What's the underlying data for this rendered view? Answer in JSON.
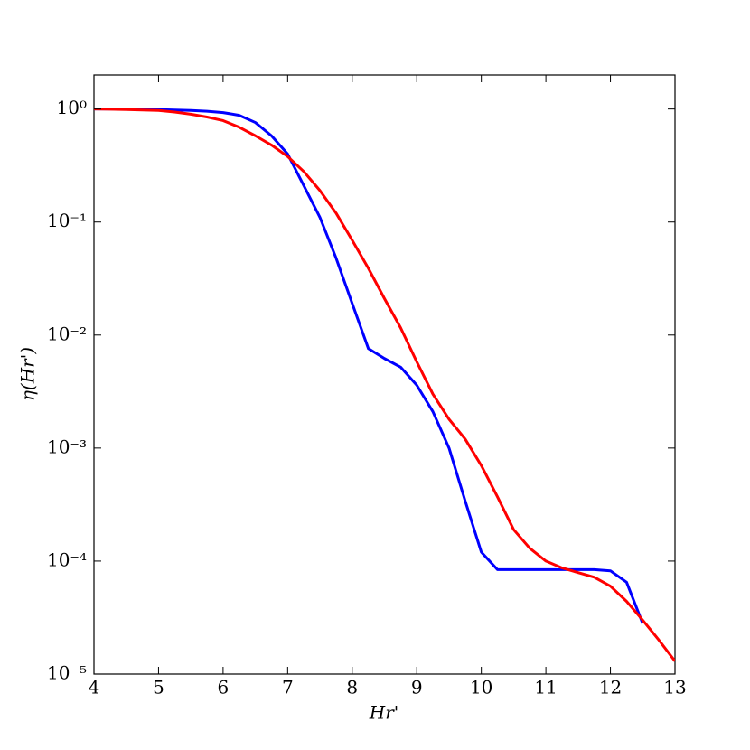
{
  "chart_data": {
    "type": "line",
    "xlabel": "Hr'",
    "ylabel": "η(Hr')",
    "x": [
      4,
      4.25,
      4.5,
      4.75,
      5,
      5.25,
      5.5,
      5.75,
      6,
      6.25,
      6.5,
      6.75,
      7,
      7.25,
      7.5,
      7.75,
      8,
      8.25,
      8.5,
      8.75,
      9,
      9.25,
      9.5,
      9.75,
      10,
      10.25,
      10.5,
      10.75,
      11,
      11.25,
      11.5,
      11.75,
      12,
      12.25,
      12.5,
      12.75,
      13
    ],
    "series": [
      {
        "color": "#0000ff",
        "values": [
          1.0,
          1.0,
          1.0,
          0.995,
          0.99,
          0.98,
          0.97,
          0.955,
          0.93,
          0.88,
          0.76,
          0.58,
          0.4,
          0.21,
          0.11,
          0.048,
          0.019,
          0.0076,
          0.0062,
          0.0052,
          0.0036,
          0.0021,
          0.001,
          0.00034,
          0.00012,
          8.4e-05,
          8.4e-05,
          8.4e-05,
          8.4e-05,
          8.4e-05,
          8.4e-05,
          8.4e-05,
          8.2e-05,
          6.5e-05,
          2.8e-05,
          null,
          null
        ]
      },
      {
        "color": "#ff0000",
        "values": [
          1.0,
          0.995,
          0.99,
          0.98,
          0.97,
          0.94,
          0.9,
          0.85,
          0.79,
          0.69,
          0.58,
          0.48,
          0.38,
          0.28,
          0.19,
          0.12,
          0.069,
          0.039,
          0.021,
          0.0116,
          0.0058,
          0.003,
          0.0018,
          0.0012,
          0.0007,
          0.00037,
          0.00019,
          0.00013,
          0.0001,
          8.7e-05,
          7.9e-05,
          7.2e-05,
          6e-05,
          4.4e-05,
          3e-05,
          2e-05,
          1.3e-05
        ]
      }
    ],
    "xlim": [
      4,
      13
    ],
    "xticks": [
      4,
      5,
      6,
      7,
      8,
      9,
      10,
      11,
      12,
      13
    ],
    "ylim": [
      1e-05,
      2
    ],
    "log_y": true,
    "yticks": [
      {
        "value": 1e-05,
        "label": "10⁻⁵"
      },
      {
        "value": 0.0001,
        "label": "10⁻⁴"
      },
      {
        "value": 0.001,
        "label": "10⁻³"
      },
      {
        "value": 0.01,
        "label": "10⁻²"
      },
      {
        "value": 0.1,
        "label": "10⁻¹"
      },
      {
        "value": 1,
        "label": "10⁰"
      }
    ]
  }
}
